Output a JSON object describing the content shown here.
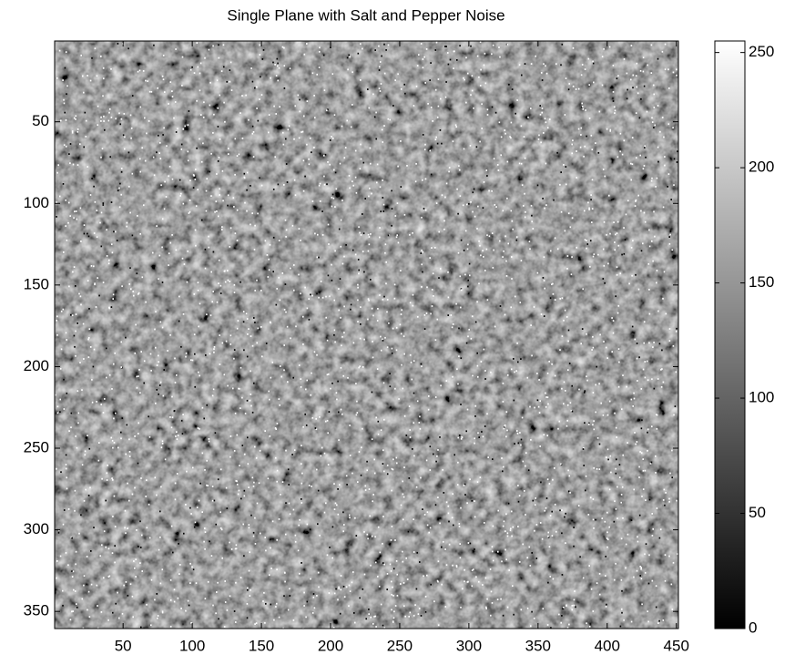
{
  "chart_data": {
    "type": "image",
    "title": "Single Plane with Salt and Pepper Noise",
    "colormap": "gray",
    "xlim": [
      0.5,
      451.5
    ],
    "xticks": [
      50,
      100,
      150,
      200,
      250,
      300,
      350,
      400,
      450
    ],
    "ylim": [
      0.5,
      360.5
    ],
    "yticks": [
      50,
      100,
      150,
      200,
      250,
      300,
      350
    ],
    "y_reversed": true,
    "colorbar": {
      "clim": [
        0,
        255
      ],
      "ticks": [
        0,
        50,
        100,
        150,
        200,
        250
      ]
    }
  }
}
